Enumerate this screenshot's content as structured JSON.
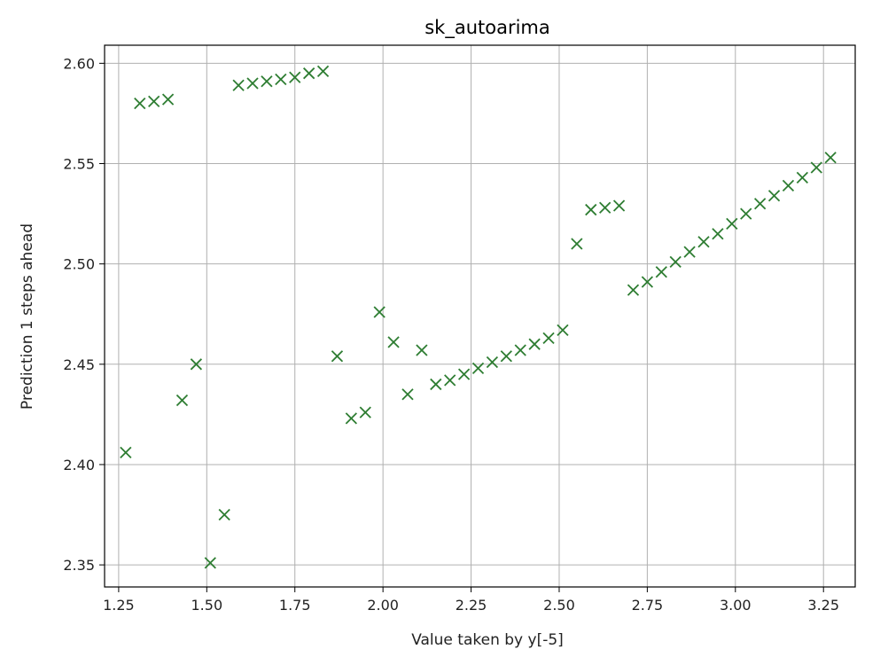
{
  "chart_data": {
    "type": "scatter",
    "title": "sk_autoarima",
    "xlabel": "Value taken by y[-5]",
    "ylabel": "Prediction 1 steps ahead",
    "xlim": [
      1.21,
      3.34
    ],
    "ylim": [
      2.339,
      2.609
    ],
    "xticks": [
      1.25,
      1.5,
      1.75,
      2.0,
      2.25,
      2.5,
      2.75,
      3.0,
      3.25
    ],
    "xtick_labels": [
      "1.25",
      "1.50",
      "1.75",
      "2.00",
      "2.25",
      "2.50",
      "2.75",
      "3.00",
      "3.25"
    ],
    "yticks": [
      2.35,
      2.4,
      2.45,
      2.5,
      2.55,
      2.6
    ],
    "ytick_labels": [
      "2.35",
      "2.40",
      "2.45",
      "2.50",
      "2.55",
      "2.60"
    ],
    "grid": true,
    "marker": "x",
    "color": "#2e7d32",
    "series": [
      {
        "x": [
          1.27,
          1.31,
          1.35,
          1.39,
          1.43,
          1.47,
          1.51,
          1.55,
          1.59,
          1.63,
          1.67,
          1.71,
          1.75,
          1.79,
          1.83,
          1.87,
          1.91,
          1.95,
          1.99,
          2.03,
          2.07,
          2.11,
          2.15,
          2.19,
          2.23,
          2.27,
          2.31,
          2.35,
          2.39,
          2.43,
          2.47,
          2.51,
          2.55,
          2.59,
          2.63,
          2.67,
          2.71,
          2.75,
          2.79,
          2.83,
          2.87,
          2.91,
          2.95,
          2.99,
          3.03,
          3.07,
          3.11,
          3.15,
          3.19,
          3.23,
          3.27
        ],
        "y": [
          2.406,
          2.58,
          2.581,
          2.582,
          2.432,
          2.45,
          2.351,
          2.375,
          2.589,
          2.59,
          2.591,
          2.592,
          2.593,
          2.595,
          2.596,
          2.454,
          2.423,
          2.426,
          2.476,
          2.461,
          2.435,
          2.457,
          2.44,
          2.442,
          2.445,
          2.448,
          2.451,
          2.454,
          2.457,
          2.46,
          2.463,
          2.467,
          2.51,
          2.527,
          2.528,
          2.529,
          2.487,
          2.491,
          2.496,
          2.501,
          2.506,
          2.511,
          2.515,
          2.52,
          2.525,
          2.53,
          2.534,
          2.539,
          2.543,
          2.548,
          2.553
        ]
      }
    ]
  }
}
